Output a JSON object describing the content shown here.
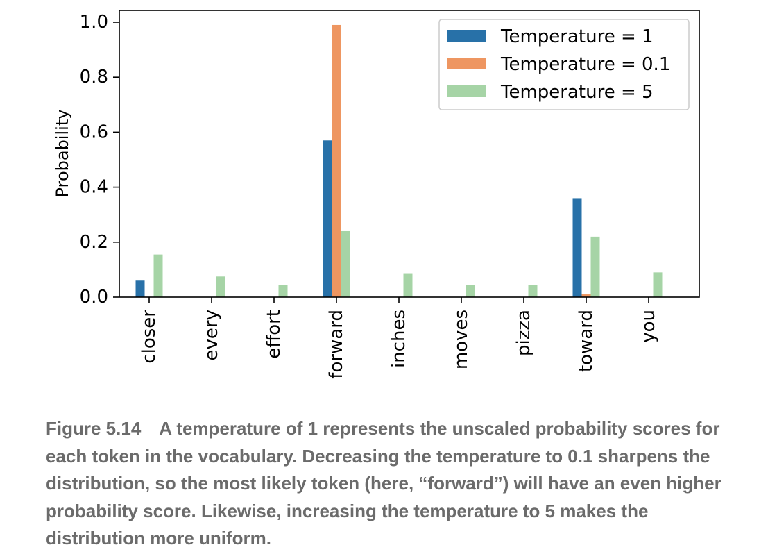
{
  "chart_data": {
    "type": "bar",
    "ylabel": "Probability",
    "xlabel": "",
    "ylim": [
      0,
      1.05
    ],
    "yticks": [
      "0.0",
      "0.2",
      "0.4",
      "0.6",
      "0.8",
      "1.0"
    ],
    "categories": [
      "closer",
      "every",
      "effort",
      "forward",
      "inches",
      "moves",
      "pizza",
      "toward",
      "you"
    ],
    "series": [
      {
        "name": "Temperature = 1",
        "color": "#1f77b4",
        "values": [
          0.06,
          0.0,
          0.0,
          0.57,
          0.0,
          0.0,
          0.0,
          0.36,
          0.0
        ]
      },
      {
        "name": "Temperature = 0.1",
        "color": "#ff7f0e",
        "values": [
          0.0,
          0.0,
          0.0,
          0.99,
          0.0,
          0.0,
          0.0,
          0.01,
          0.0
        ]
      },
      {
        "name": "Temperature = 5",
        "color": "#2ca02c",
        "values": [
          0.155,
          0.075,
          0.043,
          0.24,
          0.087,
          0.045,
          0.043,
          0.22,
          0.09
        ]
      }
    ],
    "legend_position": "top-right",
    "grid": false
  },
  "caption": {
    "figure_label": "Figure 5.14",
    "text": "A temperature of 1 represents the unscaled probability scores for each token in the vocabulary. Decreasing the temperature to 0.1 sharpens the distribution, so the most likely token (here, “forward”) will have an even higher probability score. Likewise, increasing the temperature to 5 makes the distribution more uniform."
  }
}
